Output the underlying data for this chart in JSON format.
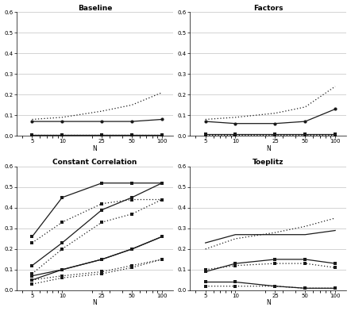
{
  "x": [
    5,
    10,
    25,
    50,
    100
  ],
  "titles": [
    "Baseline",
    "Factors",
    "Constant Correlation",
    "Toeplitz"
  ],
  "xlabel": "N",
  "ylim": [
    0,
    0.6
  ],
  "yticks": [
    0.0,
    0.1,
    0.2,
    0.3,
    0.4,
    0.5,
    0.6
  ],
  "background": "#ffffff",
  "panels": {
    "Baseline": {
      "dotted_plain": [
        0.08,
        0.09,
        0.12,
        0.15,
        0.21
      ],
      "solid_circle": [
        0.07,
        0.07,
        0.07,
        0.07,
        0.08
      ],
      "solid_square": [
        0.005,
        0.005,
        0.005,
        0.005,
        0.005
      ],
      "dotted_square": [
        0.003,
        0.003,
        0.003,
        0.003,
        0.003
      ]
    },
    "Factors": {
      "dotted_plain": [
        0.08,
        0.09,
        0.11,
        0.14,
        0.24
      ],
      "solid_circle": [
        0.07,
        0.06,
        0.06,
        0.07,
        0.13
      ],
      "solid_square": [
        0.01,
        0.01,
        0.01,
        0.01,
        0.01
      ],
      "dotted_square": [
        0.005,
        0.005,
        0.005,
        0.005,
        0.005
      ]
    },
    "Constant Correlation": {
      "solid_high1": [
        0.26,
        0.45,
        0.52,
        0.52,
        0.52
      ],
      "solid_high2": [
        0.12,
        0.23,
        0.39,
        0.45,
        0.52
      ],
      "dotted_high1": [
        0.23,
        0.33,
        0.42,
        0.44,
        0.44
      ],
      "dotted_high2": [
        0.08,
        0.2,
        0.33,
        0.37,
        0.44
      ],
      "solid_low1": [
        0.07,
        0.1,
        0.15,
        0.2,
        0.26
      ],
      "solid_low2": [
        0.05,
        0.1,
        0.15,
        0.2,
        0.26
      ],
      "dotted_low1": [
        0.05,
        0.07,
        0.09,
        0.12,
        0.15
      ],
      "dotted_low2": [
        0.03,
        0.06,
        0.08,
        0.11,
        0.15
      ]
    },
    "Toeplitz": {
      "solid_high1": [
        0.23,
        0.27,
        0.27,
        0.27,
        0.29
      ],
      "dotted_high": [
        0.2,
        0.25,
        0.28,
        0.31,
        0.35
      ],
      "solid_mid1": [
        0.09,
        0.13,
        0.15,
        0.15,
        0.13
      ],
      "dotted_mid": [
        0.1,
        0.12,
        0.13,
        0.13,
        0.11
      ],
      "solid_low1": [
        0.04,
        0.04,
        0.02,
        0.01,
        0.01
      ],
      "dotted_low": [
        0.02,
        0.02,
        0.02,
        0.01,
        0.01
      ]
    }
  }
}
